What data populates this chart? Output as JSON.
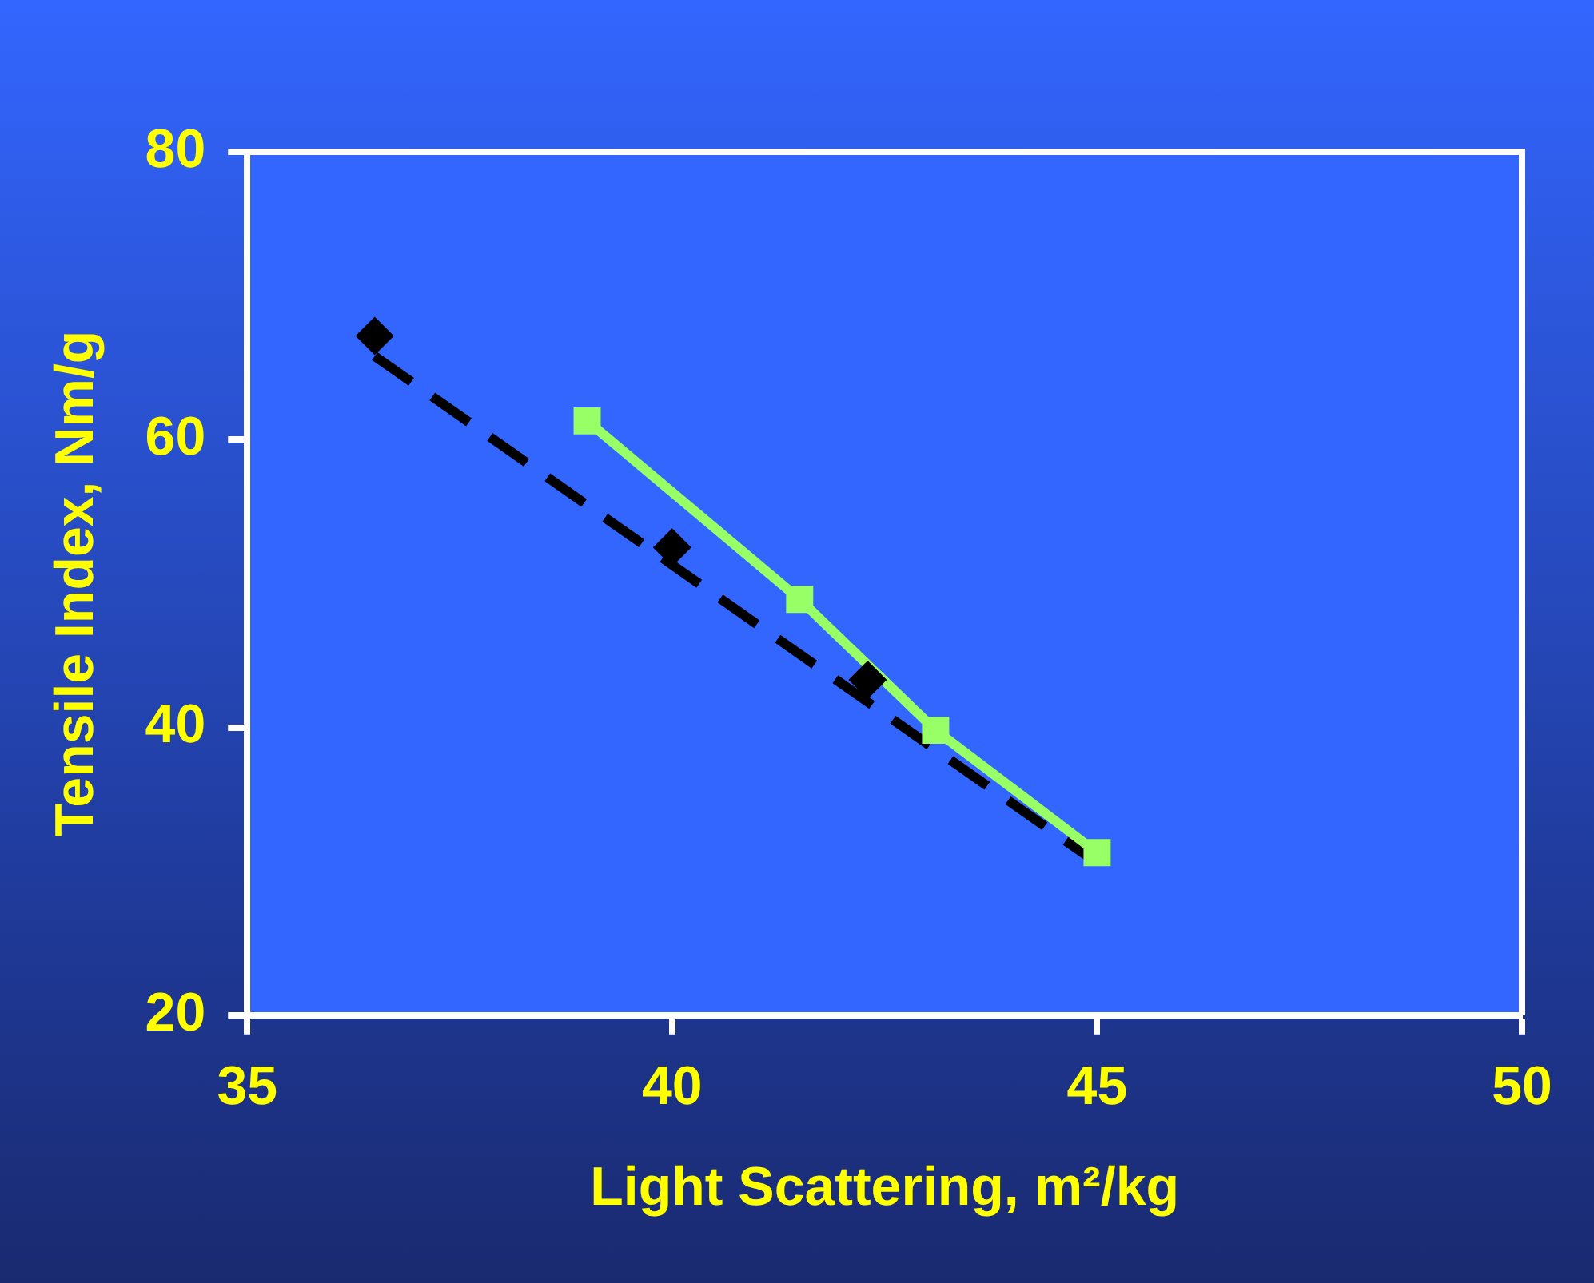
{
  "chart_data": {
    "type": "scatter",
    "xlabel": "Light Scattering, m²/kg",
    "ylabel": "Tensile Index, Nm/g",
    "xlim": [
      35,
      50
    ],
    "xticks": [
      35,
      40,
      45,
      50
    ],
    "ylim": [
      20,
      80
    ],
    "yticks": [
      20,
      40,
      60,
      80
    ],
    "grid": false,
    "legend": false,
    "series": [
      {
        "type": "scatter",
        "color": "#000000",
        "marker": "diamond",
        "x": [
          36.5,
          40.0,
          42.3
        ],
        "values": [
          67.2,
          52.5,
          43.3
        ]
      },
      {
        "type": "line",
        "color": "#99ff66",
        "marker": "square",
        "line_style": "solid",
        "x": [
          39.0,
          41.5,
          43.1,
          45.0
        ],
        "values": [
          61.3,
          48.9,
          39.8,
          31.3
        ]
      },
      {
        "type": "line",
        "color": "#000000",
        "marker": "none",
        "line_style": "dashed",
        "x": [
          36.5,
          44.9
        ],
        "values": [
          65.8,
          31.0
        ]
      }
    ]
  }
}
